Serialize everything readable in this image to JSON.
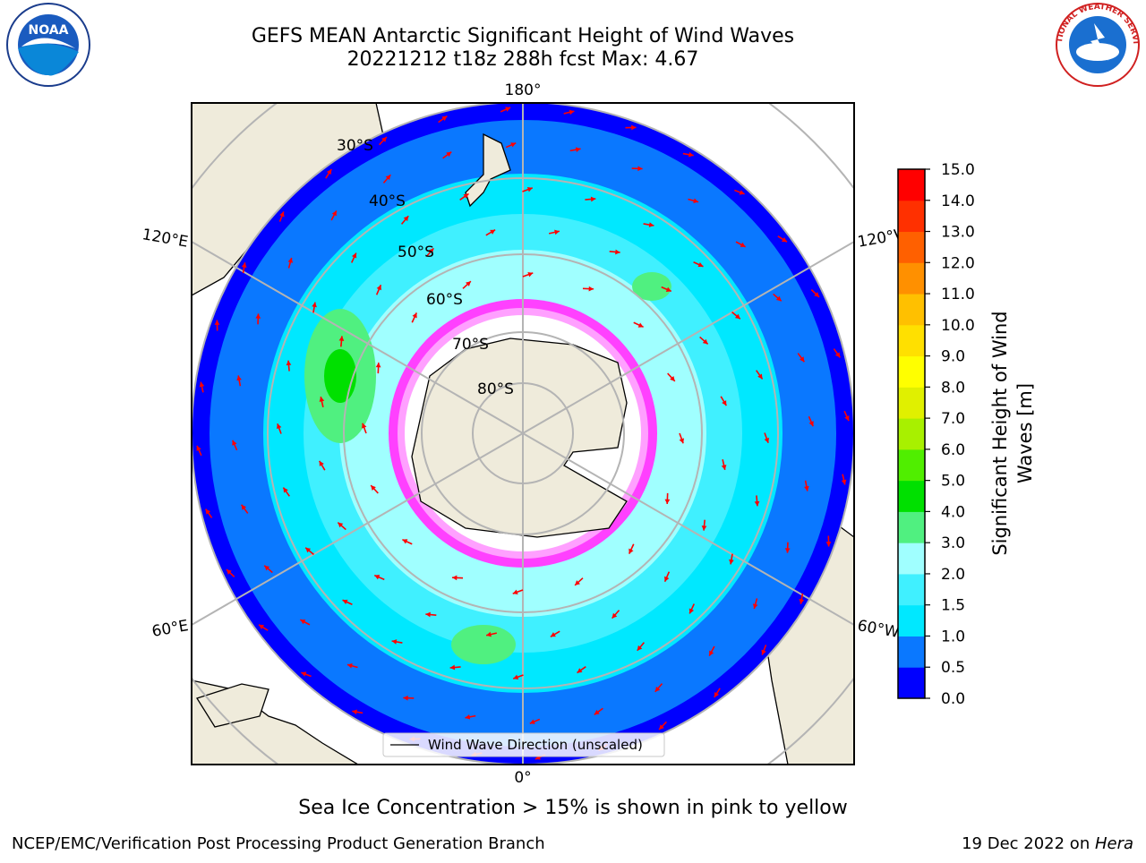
{
  "title": {
    "line1": "GEFS MEAN Antarctic Significant Height of Wind Waves",
    "line2": "20221212 t18z 288h fcst   Max: 4.67"
  },
  "logos": {
    "noaa_text": "NOAA",
    "nws_text": "NATIONAL WEATHER SERVICE"
  },
  "map": {
    "projection": "south-polar-stereographic",
    "lat_labels": [
      "30°S",
      "40°S",
      "50°S",
      "60°S",
      "70°S",
      "80°S"
    ],
    "lon_labels": {
      "top": "180°",
      "bottom": "0°",
      "upper_left": "120°E",
      "upper_right": "120°W",
      "lower_left": "60°E",
      "lower_right": "60°W"
    },
    "legend": "Wind Wave Direction (unscaled)"
  },
  "colorbar": {
    "label": "Significant Height of Wind Waves [m]",
    "ticks": [
      "0.0",
      "0.5",
      "1.0",
      "1.5",
      "2.0",
      "3.0",
      "4.0",
      "5.0",
      "6.0",
      "7.0",
      "8.0",
      "9.0",
      "10.0",
      "11.0",
      "12.0",
      "13.0",
      "14.0",
      "15.0"
    ],
    "colors": [
      "#0000ff",
      "#0a78ff",
      "#00e8ff",
      "#40f0ff",
      "#a0ffff",
      "#50f080",
      "#00e000",
      "#50ee00",
      "#a8f000",
      "#e0f000",
      "#ffff00",
      "#ffe000",
      "#ffc000",
      "#ff9000",
      "#ff6000",
      "#ff3000",
      "#ff0000"
    ]
  },
  "ice_color_scale": [
    "#ff60ff",
    "#ff40ff",
    "#ffa0ff",
    "#ffd060",
    "#ffff40"
  ],
  "land_color": "#efebdb",
  "arrow_color": "#ff0000",
  "caption": "Sea Ice Concentration > 15% is shown in pink to yellow",
  "footer": {
    "left": "NCEP/EMC/Verification Post Processing Product Generation Branch",
    "right_date": "19 Dec 2022 on ",
    "right_machine": "Hera"
  }
}
